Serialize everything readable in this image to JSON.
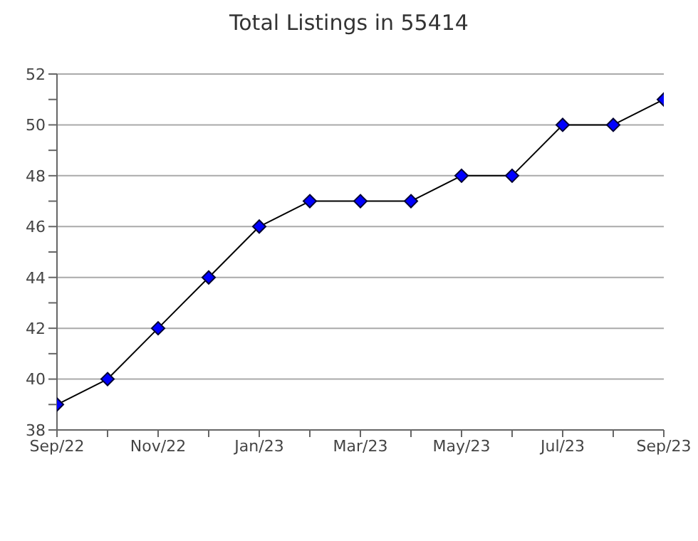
{
  "chart_data": {
    "type": "line",
    "title": "Total Listings in 55414",
    "categories": [
      "Sep/22",
      null,
      "Nov/22",
      null,
      "Jan/23",
      null,
      "Mar/23",
      null,
      "May/23",
      null,
      "Jul/23",
      null,
      "Sep/23"
    ],
    "series": [
      {
        "color": "#0000ff",
        "values": [
          39,
          40,
          42,
          44,
          46,
          47,
          47,
          47,
          48,
          48,
          50,
          50,
          51
        ]
      }
    ],
    "ylim": [
      38,
      52
    ],
    "yticks": [
      38,
      {
        "value": 39,
        "label": null
      },
      40,
      {
        "value": 41,
        "label": null
      },
      42,
      {
        "value": 43,
        "label": null
      },
      44,
      {
        "value": 45,
        "label": null
      },
      46,
      {
        "value": 47,
        "label": null
      },
      48,
      {
        "value": 49,
        "label": null
      },
      50,
      {
        "value": 51,
        "label": null
      },
      52
    ],
    "grid": "y",
    "marker": "diamond",
    "line_style": "solid"
  }
}
